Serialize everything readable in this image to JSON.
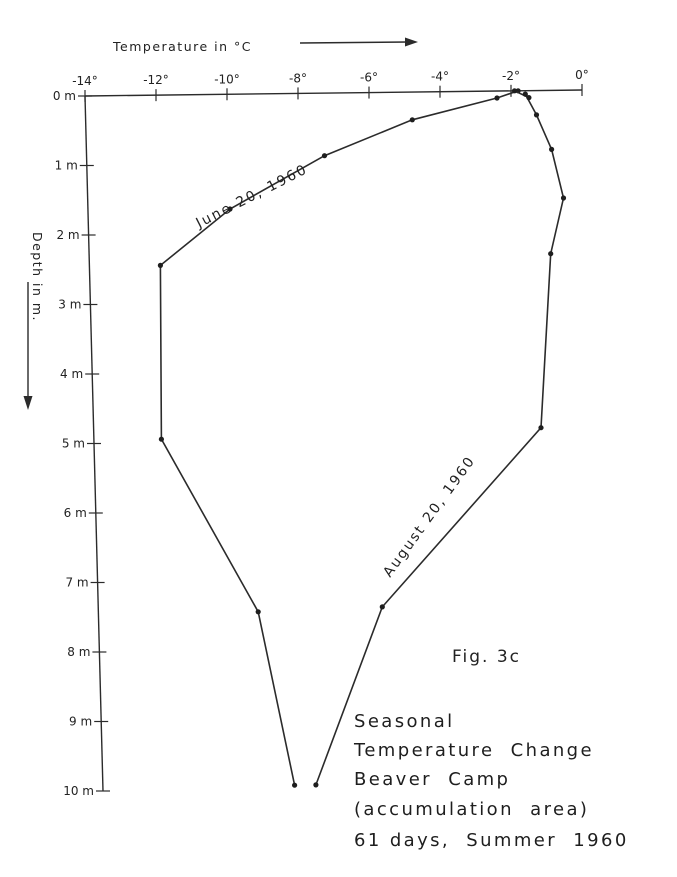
{
  "chart_data": {
    "type": "line",
    "x_axis": {
      "title": "Temperature in °C",
      "range": [
        -14,
        0
      ],
      "ticks": [
        -14,
        -12,
        -10,
        -8,
        -6,
        -4,
        -2,
        0
      ],
      "tick_labels": [
        "-14°",
        "-12°",
        "-10°",
        "-8°",
        "-6°",
        "-4°",
        "-2°",
        "0°"
      ],
      "position": "top"
    },
    "y_axis": {
      "title": "Depth in m.",
      "range": [
        0,
        10
      ],
      "ticks": [
        0,
        1,
        2,
        3,
        4,
        5,
        6,
        7,
        8,
        9,
        10
      ],
      "tick_labels": [
        "0 m",
        "1 m",
        "2 m",
        "3 m",
        "4 m",
        "5 m",
        "6 m",
        "7 m",
        "8 m",
        "9 m",
        "10 m"
      ],
      "inverted": true
    },
    "series": [
      {
        "name": "June 20, 1960",
        "x": [
          -1.8,
          -2.4,
          -4.8,
          -7.3,
          -10.0,
          -12.0,
          -12.1,
          -9.5,
          -8.6
        ],
        "y": [
          0.0,
          0.1,
          0.4,
          0.9,
          1.65,
          2.45,
          4.95,
          7.45,
          9.95
        ]
      },
      {
        "name": "August 20, 1960",
        "x": [
          -1.9,
          -1.5,
          -1.6,
          -1.3,
          -0.9,
          -0.6,
          -1.0,
          -1.4,
          -6.0,
          -8.0
        ],
        "y": [
          0.0,
          0.1,
          0.05,
          0.35,
          0.85,
          1.55,
          2.35,
          4.85,
          7.4,
          9.95
        ]
      }
    ],
    "grid": false,
    "legend": "none"
  },
  "figure_label": "Fig. 3c",
  "caption_lines": [
    "Seasonal",
    "Temperature  Change",
    "Beaver  Camp",
    "(accumulation  area)",
    "61 days,  Summer  1960"
  ]
}
